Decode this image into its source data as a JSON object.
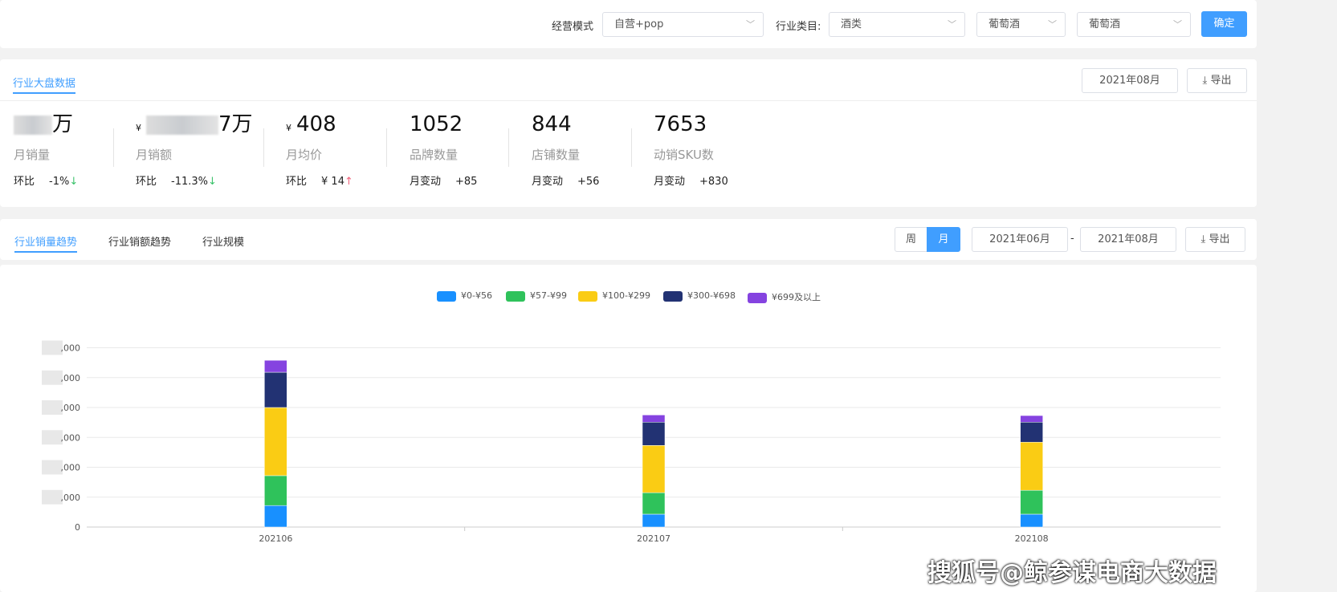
{
  "filters": {
    "mode_label": "经营模式",
    "mode_value": "自营+pop",
    "category_label": "行业类目:",
    "category_value": "酒类",
    "sub1": "葡萄酒",
    "sub2": "葡萄酒",
    "confirm": "确定"
  },
  "overview": {
    "tab": "行业大盘数据",
    "date": "2021年08月",
    "export": "导出",
    "metrics": [
      {
        "value": "万",
        "name": "月销量",
        "chg_label": "环比",
        "chg": "-1%",
        "dir": "down"
      },
      {
        "value": "7万",
        "currency": "¥",
        "name": "月销额",
        "chg_label": "环比",
        "chg": "-11.3%",
        "dir": "down"
      },
      {
        "value": "408",
        "currency": "¥",
        "name": "月均价",
        "chg_label": "环比",
        "chg": "¥ 14",
        "dir": "up"
      },
      {
        "value": "1052",
        "name": "品牌数量",
        "chg_label": "月变动",
        "chg": "+85"
      },
      {
        "value": "844",
        "name": "店铺数量",
        "chg_label": "月变动",
        "chg": "+56"
      },
      {
        "value": "7653",
        "name": "动销SKU数",
        "chg_label": "月变动",
        "chg": "+830"
      }
    ]
  },
  "trend": {
    "tabs": [
      "行业销量趋势",
      "行业销额趋势",
      "行业规模"
    ],
    "week": "周",
    "month": "月",
    "date_from": "2021年06月",
    "date_sep": "-",
    "date_to": "2021年08月",
    "export": "导出"
  },
  "chart_data": {
    "type": "bar",
    "stacked": true,
    "categories": [
      "202106",
      "202107",
      "202108"
    ],
    "yticks": [
      "0",
      ",000",
      ",000",
      ",000",
      ",000",
      ",000",
      ",000"
    ],
    "ylim": [
      0,
      6
    ],
    "grid": true,
    "legend": "top",
    "series": [
      {
        "name": "¥0-¥56",
        "color": "#1890ff",
        "values": [
          0.72,
          0.43,
          0.43
        ]
      },
      {
        "name": "¥57-¥99",
        "color": "#2fc25b",
        "values": [
          1.0,
          0.72,
          0.8
        ]
      },
      {
        "name": "¥100-¥299",
        "color": "#facc14",
        "values": [
          2.28,
          1.58,
          1.61
        ]
      },
      {
        "name": "¥300-¥698",
        "color": "#223273",
        "values": [
          1.18,
          0.78,
          0.67
        ]
      },
      {
        "name": "¥699及以上",
        "color": "#8543e0",
        "values": [
          0.4,
          0.24,
          0.22
        ]
      }
    ]
  },
  "watermark": "搜狐号@鲸参谋电商大数据"
}
